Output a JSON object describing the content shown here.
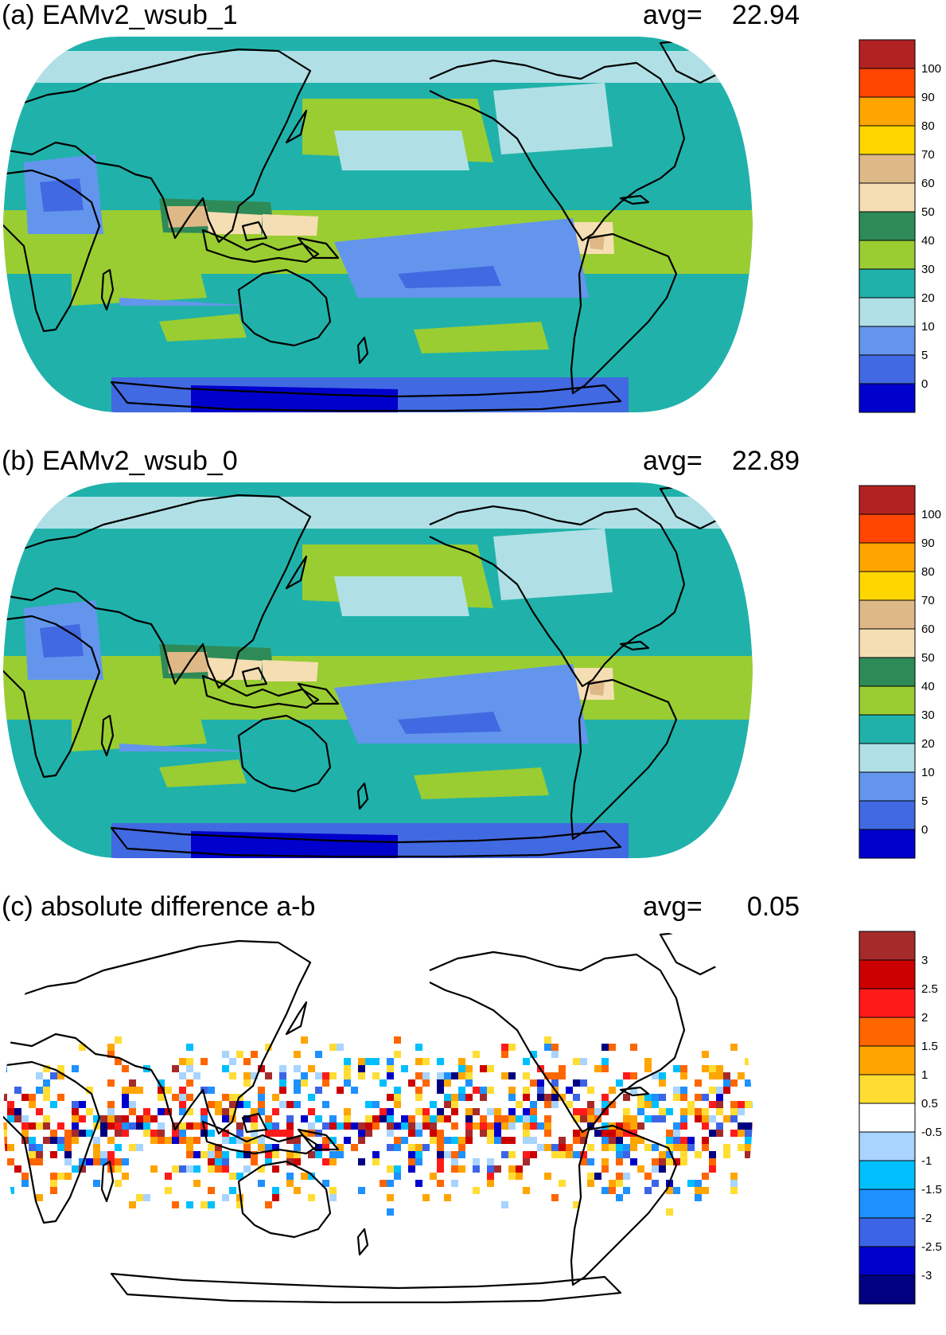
{
  "panels": [
    {
      "id": "a",
      "title": "(a) EAMv2_wsub_1",
      "avg_label": "avg=",
      "avg_value": "22.94",
      "colorbar": {
        "labels": [
          "100",
          "90",
          "80",
          "70",
          "60",
          "50",
          "40",
          "30",
          "20",
          "10",
          "5",
          "0"
        ],
        "colors": [
          "#b22222",
          "#ff4500",
          "#ffa500",
          "#ffd700",
          "#deb887",
          "#f5deb3",
          "#2e8b57",
          "#9acd32",
          "#20b2aa",
          "#b0e0e6",
          "#6495ed",
          "#4169e1",
          "#0000cd"
        ]
      }
    },
    {
      "id": "b",
      "title": "(b) EAMv2_wsub_0",
      "avg_label": "avg=",
      "avg_value": "22.89",
      "colorbar": {
        "labels": [
          "100",
          "90",
          "80",
          "70",
          "60",
          "50",
          "40",
          "30",
          "20",
          "10",
          "5",
          "0"
        ],
        "colors": [
          "#b22222",
          "#ff4500",
          "#ffa500",
          "#ffd700",
          "#deb887",
          "#f5deb3",
          "#2e8b57",
          "#9acd32",
          "#20b2aa",
          "#b0e0e6",
          "#6495ed",
          "#4169e1",
          "#0000cd"
        ]
      }
    },
    {
      "id": "c",
      "title": "(c) absolute difference a-b",
      "avg_label": "avg=",
      "avg_value": "0.05",
      "colorbar": {
        "labels": [
          "3",
          "2.5",
          "2",
          "1.5",
          "1",
          "0.5",
          "-0.5",
          "-1",
          "-1.5",
          "-2",
          "-2.5",
          "-3"
        ],
        "colors": [
          "#a52a2a",
          "#cc0000",
          "#ff1a1a",
          "#ff6600",
          "#ffa500",
          "#ffdd33",
          "#ffffff",
          "#a8d4ff",
          "#00bfff",
          "#1e90ff",
          "#3c64e6",
          "#0000cd",
          "#000080"
        ]
      }
    }
  ]
}
